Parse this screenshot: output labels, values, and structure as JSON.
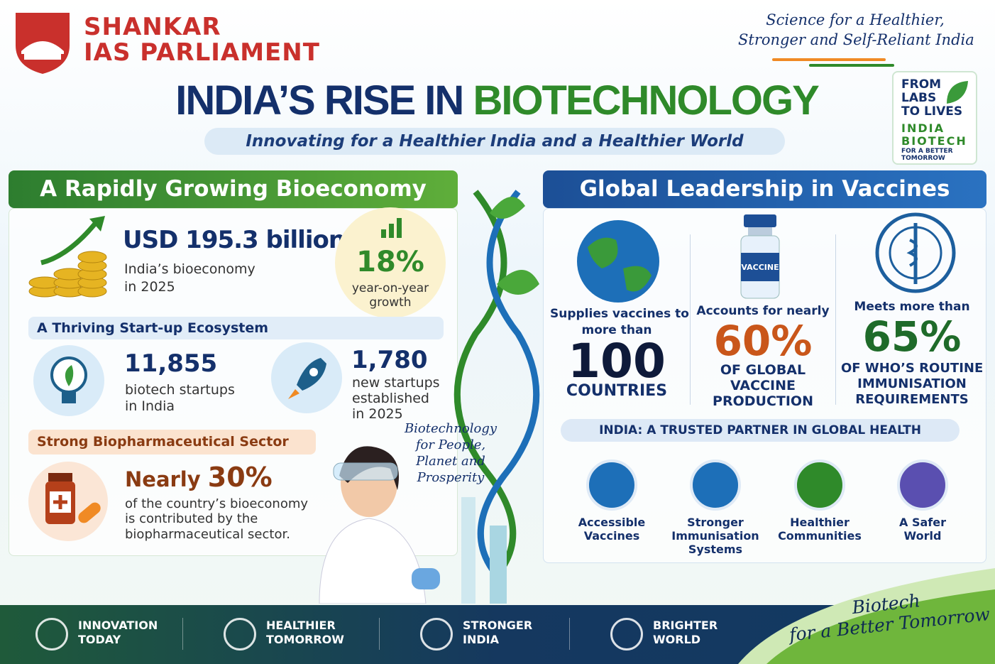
{
  "header": {
    "brand_line1": "SHANKAR",
    "brand_line2": "IAS PARLIAMENT",
    "tagline_line1": "Science for a Healthier,",
    "tagline_line2": "Stronger and Self-Reliant India",
    "title_part1": "INDIA’S RISE IN",
    "title_part2": "BIOTECHNOLOGY",
    "subtitle": "Innovating for a Healthier India and a Healthier World"
  },
  "badge": {
    "lines": [
      "FROM",
      "LABS",
      "TO LIVES"
    ],
    "brand": [
      "INDIA",
      "BIOTECH"
    ],
    "motto": [
      "FOR A BETTER",
      "TOMORROW"
    ]
  },
  "bioeconomy": {
    "heading": "A Rapidly Growing Bioeconomy",
    "size": {
      "value": "USD 195.3 billion",
      "lines": [
        "India’s bioeconomy",
        "in 2025"
      ]
    },
    "growth": {
      "value": "18%",
      "lines": [
        "year-on-year",
        "growth"
      ]
    },
    "startups": {
      "heading": "A Thriving Start-up Ecosystem",
      "total": {
        "value": "11,855",
        "lines": [
          "biotech startups",
          "in India"
        ]
      },
      "new": {
        "value": "1,780",
        "lines": [
          "new startups",
          "established",
          "in 2025"
        ]
      }
    },
    "biopharma": {
      "heading": "Strong Biopharmaceutical Sector",
      "prefix": "Nearly",
      "value": "30%",
      "lines": [
        "of the country’s bioeconomy",
        "is contributed by the",
        "biopharmaceutical sector."
      ]
    }
  },
  "caption": {
    "lines": [
      "Biotechnology",
      "for People,",
      "Planet and",
      "Prosperity"
    ]
  },
  "vaccines": {
    "heading": "Global Leadership in Vaccines",
    "supply": {
      "lead": [
        "Supplies vaccines to",
        "more than"
      ],
      "value": "100",
      "unit": "COUNTRIES"
    },
    "production": {
      "vial_label": "VACCINE",
      "lead": "Accounts for nearly",
      "value": "60%",
      "lines": [
        "OF GLOBAL",
        "VACCINE",
        "PRODUCTION"
      ]
    },
    "who": {
      "lead": "Meets more than",
      "value": "65%",
      "lines": [
        "OF WHO’S ROUTINE",
        "IMMUNISATION",
        "REQUIREMENTS"
      ]
    },
    "partner": {
      "heading": "INDIA: A TRUSTED PARTNER IN GLOBAL HEALTH",
      "pillars": [
        {
          "lines": [
            "Accessible",
            "Vaccines"
          ]
        },
        {
          "lines": [
            "Stronger",
            "Immunisation",
            "Systems"
          ]
        },
        {
          "lines": [
            "Healthier",
            "Communities"
          ]
        },
        {
          "lines": [
            "A Safer",
            "World"
          ]
        }
      ]
    }
  },
  "footer": {
    "items": [
      {
        "lines": [
          "INNOVATION",
          "TODAY"
        ]
      },
      {
        "lines": [
          "HEALTHIER",
          "TOMORROW"
        ]
      },
      {
        "lines": [
          "STRONGER",
          "INDIA"
        ]
      },
      {
        "lines": [
          "BRIGHTER",
          "WORLD"
        ]
      }
    ],
    "slogan": [
      "Biotech",
      "for a Better Tomorrow"
    ]
  }
}
